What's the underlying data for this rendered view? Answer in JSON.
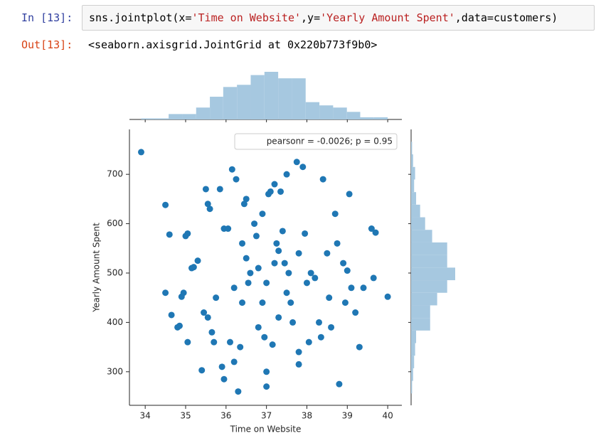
{
  "notebook": {
    "in_prompt": "In [13]:",
    "code": [
      {
        "text": "sns.jointplot(x=",
        "color": "#000000"
      },
      {
        "text": "'Time on Website'",
        "color": "#ba2121"
      },
      {
        "text": ",y=",
        "color": "#000000"
      },
      {
        "text": "'Yearly Amount Spent'",
        "color": "#ba2121"
      },
      {
        "text": ",data=customers)",
        "color": "#000000"
      }
    ],
    "out_prompt": "Out[13]:",
    "output": "<seaborn.axisgrid.JointGrid at 0x220b773f9b0>"
  },
  "chart_data": {
    "type": "jointplot",
    "xlabel": "Time on Website",
    "ylabel": "Yearly Amount Spent",
    "annotation": "pearsonr = -0.0026; p = 0.95",
    "color": "#1f77b4",
    "hist_color": "#a6c8e0",
    "xlim": [
      33.61,
      40.35
    ],
    "xticks": [
      34,
      35,
      36,
      37,
      38,
      39,
      40
    ],
    "ylim": [
      232,
      791
    ],
    "yticks": [
      300,
      400,
      500,
      600,
      700
    ],
    "x": [
      33.9,
      34.5,
      34.5,
      34.65,
      34.6,
      34.8,
      34.85,
      34.9,
      34.95,
      35.05,
      35.0,
      35.05,
      35.15,
      35.2,
      35.3,
      35.4,
      35.45,
      35.5,
      35.55,
      35.6,
      35.55,
      35.65,
      35.7,
      35.75,
      35.85,
      35.9,
      35.95,
      35.95,
      36.05,
      36.1,
      36.15,
      36.2,
      36.25,
      36.3,
      36.35,
      36.4,
      36.45,
      36.5,
      36.55,
      36.6,
      36.7,
      36.75,
      36.8,
      36.9,
      36.95,
      37.0,
      37.0,
      37.05,
      37.1,
      37.15,
      37.2,
      37.25,
      37.3,
      37.35,
      37.4,
      37.45,
      37.5,
      37.55,
      37.6,
      37.65,
      37.75,
      37.8,
      37.8,
      37.9,
      37.95,
      38.0,
      38.05,
      38.1,
      38.2,
      38.3,
      38.35,
      38.4,
      38.5,
      38.55,
      38.6,
      38.7,
      38.75,
      38.8,
      38.9,
      38.95,
      39.0,
      39.05,
      39.1,
      39.2,
      39.3,
      39.4,
      39.6,
      39.65,
      39.7,
      40.0,
      36.8,
      37.0,
      37.2,
      36.5,
      37.5,
      36.2,
      37.8,
      36.9,
      37.3,
      36.4
    ],
    "y": [
      745,
      638,
      460,
      415,
      578,
      390,
      393,
      452,
      460,
      360,
      575,
      580,
      510,
      512,
      525,
      303,
      420,
      670,
      640,
      630,
      410,
      380,
      360,
      450,
      670,
      310,
      285,
      590,
      590,
      360,
      710,
      320,
      690,
      260,
      350,
      440,
      640,
      650,
      480,
      500,
      600,
      575,
      390,
      620,
      370,
      270,
      300,
      660,
      665,
      355,
      680,
      560,
      545,
      665,
      585,
      520,
      700,
      500,
      440,
      400,
      725,
      315,
      340,
      715,
      580,
      480,
      360,
      500,
      490,
      400,
      370,
      690,
      540,
      450,
      390,
      620,
      560,
      275,
      520,
      440,
      505,
      660,
      470,
      420,
      350,
      470,
      590,
      490,
      582,
      452,
      510,
      480,
      520,
      530,
      460,
      470,
      540,
      440,
      410,
      560
    ],
    "marginal_x": {
      "bins": [
        33.9,
        34.24,
        34.58,
        34.92,
        35.26,
        35.6,
        35.93,
        36.27,
        36.61,
        36.95,
        37.29,
        37.63,
        37.97,
        38.31,
        38.65,
        38.99,
        39.32,
        39.66,
        40.0
      ],
      "counts": [
        1,
        1,
        5,
        5,
        11,
        21,
        30,
        32,
        41,
        44,
        38,
        38,
        16,
        13,
        11,
        7,
        2,
        2
      ]
    },
    "marginal_y": {
      "bins": [
        256,
        281.5,
        307,
        332.5,
        358,
        383.5,
        409,
        434.5,
        460,
        485.5,
        511,
        536.5,
        562,
        587.5,
        613,
        638.5,
        664,
        689.5,
        715,
        740.5,
        766
      ],
      "counts": [
        1,
        2,
        3,
        4,
        5,
        19,
        19,
        26,
        36,
        44,
        36,
        36,
        21,
        14,
        9,
        5,
        3,
        4,
        2,
        1
      ]
    }
  }
}
